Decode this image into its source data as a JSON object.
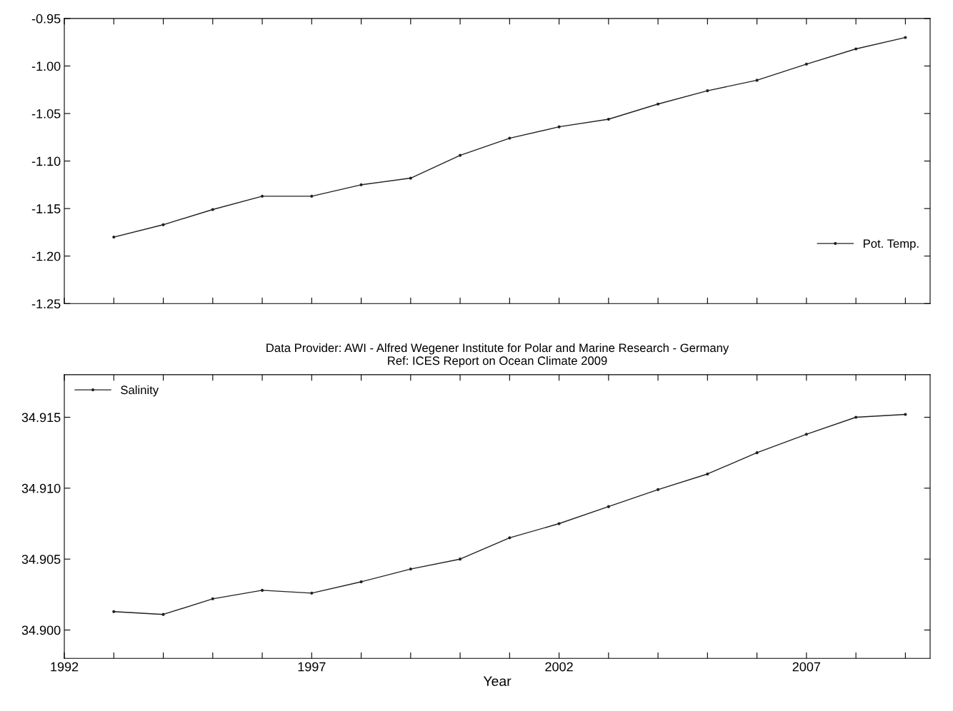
{
  "chart_data": [
    {
      "type": "line",
      "x": [
        1993,
        1994,
        1995,
        1996,
        1997,
        1998,
        1999,
        2000,
        2001,
        2002,
        2003,
        2004,
        2005,
        2006,
        2007,
        2008,
        2009
      ],
      "series": [
        {
          "name": "Pot. Temp.",
          "color": "#222222",
          "values": [
            -1.18,
            -1.167,
            -1.151,
            -1.137,
            -1.137,
            -1.125,
            -1.118,
            -1.094,
            -1.076,
            -1.064,
            -1.056,
            -1.04,
            -1.026,
            -1.015,
            -0.998,
            -0.982,
            -0.97
          ]
        }
      ],
      "xlim": [
        1992,
        2009.5
      ],
      "xticks": [
        1992,
        1993,
        1994,
        1995,
        1996,
        1997,
        1998,
        1999,
        2000,
        2001,
        2002,
        2003,
        2004,
        2005,
        2006,
        2007,
        2008,
        2009
      ],
      "ylim": [
        -1.25,
        -0.95
      ],
      "yticks": [
        {
          "value": -1.25,
          "label": "-1.25"
        },
        {
          "value": -1.2,
          "label": "-1.20"
        },
        {
          "value": -1.15,
          "label": "-1.15"
        },
        {
          "value": -1.1,
          "label": "-1.10"
        },
        {
          "value": -1.05,
          "label": "-1.05"
        },
        {
          "value": -1.0,
          "label": "-1.00"
        },
        {
          "value": -0.95,
          "label": "-0.95"
        }
      ],
      "tick_labels": "y",
      "legend": "bottom right",
      "marker": "circle",
      "line_style": "solid",
      "grid": false
    },
    {
      "type": "line",
      "title": "Data Provider: AWI - Alfred Wegener Institute for Polar and Marine Research - Germany\nRef: ICES Report on Ocean Climate 2009",
      "xlabel": "Year",
      "x": [
        1993,
        1994,
        1995,
        1996,
        1997,
        1998,
        1999,
        2000,
        2001,
        2002,
        2003,
        2004,
        2005,
        2006,
        2007,
        2008,
        2009
      ],
      "series": [
        {
          "name": "Salinity",
          "color": "#222222",
          "values": [
            34.9013,
            34.9011,
            34.9022,
            34.9028,
            34.9026,
            34.9034,
            34.9043,
            34.905,
            34.9065,
            34.9075,
            34.9087,
            34.9099,
            34.911,
            34.9125,
            34.9138,
            34.915,
            34.9152
          ]
        }
      ],
      "xlim": [
        1992,
        2009.5
      ],
      "xticks": [
        1992,
        {
          "value": 1993,
          "label": null
        },
        {
          "value": 1994,
          "label": null
        },
        {
          "value": 1995,
          "label": null
        },
        {
          "value": 1996,
          "label": null
        },
        1997,
        {
          "value": 1998,
          "label": null
        },
        {
          "value": 1999,
          "label": null
        },
        {
          "value": 2000,
          "label": null
        },
        {
          "value": 2001,
          "label": null
        },
        2002,
        {
          "value": 2003,
          "label": null
        },
        {
          "value": 2004,
          "label": null
        },
        {
          "value": 2005,
          "label": null
        },
        {
          "value": 2006,
          "label": null
        },
        2007,
        {
          "value": 2008,
          "label": null
        },
        {
          "value": 2009,
          "label": null
        }
      ],
      "ylim": [
        34.898,
        34.918
      ],
      "yticks": [
        {
          "value": 34.9,
          "label": "34.900"
        },
        {
          "value": 34.905,
          "label": "34.905"
        },
        {
          "value": 34.91,
          "label": "34.910"
        },
        {
          "value": 34.915,
          "label": "34.915"
        }
      ],
      "legend": "top left",
      "marker": "circle",
      "line_style": "solid",
      "grid": false
    }
  ]
}
